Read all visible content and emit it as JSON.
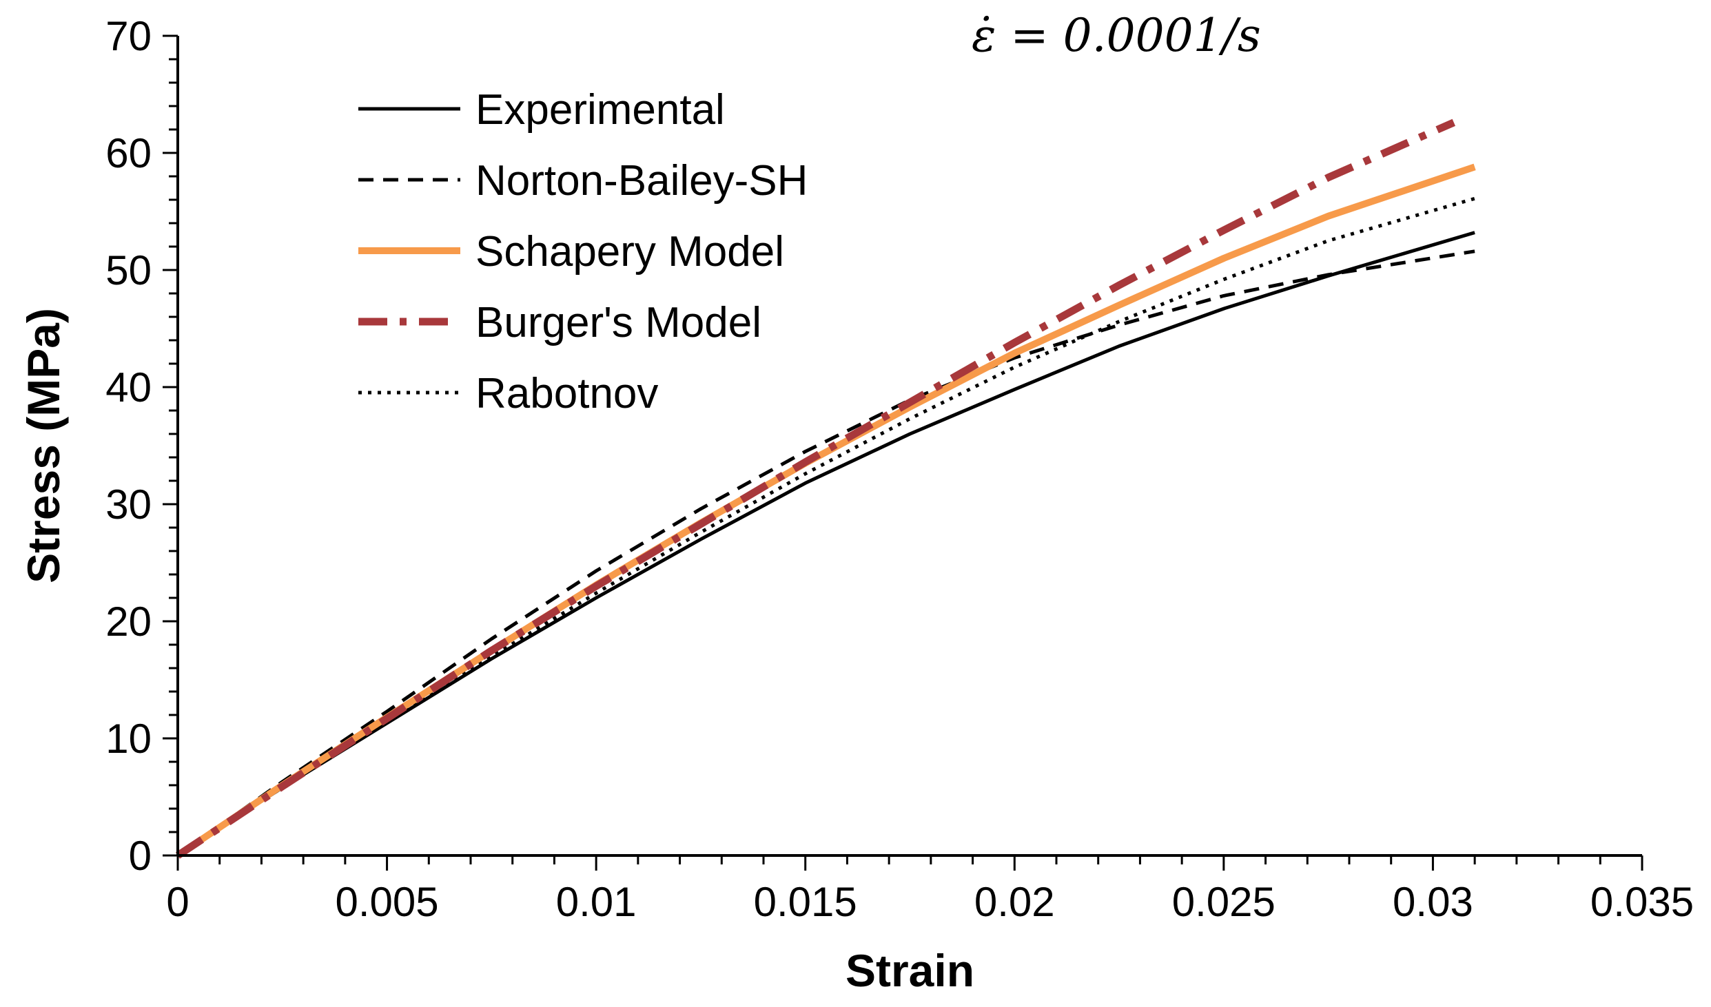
{
  "chart_data": {
    "type": "line",
    "title": "",
    "xlabel": "Strain",
    "ylabel": "Stress (MPa)",
    "annotation": "ε̇ = 0.0001/s",
    "xlim": [
      0,
      0.035
    ],
    "ylim": [
      0,
      70
    ],
    "xticks": [
      0,
      0.005,
      0.01,
      0.015,
      0.02,
      0.025,
      0.03,
      0.035
    ],
    "xtick_labels": [
      "0",
      "0.005",
      "0.01",
      "0.015",
      "0.02",
      "0.025",
      "0.03",
      "0.035"
    ],
    "yticks": [
      0,
      10,
      20,
      30,
      40,
      50,
      60,
      70
    ],
    "ytick_labels": [
      "0",
      "10",
      "20",
      "30",
      "40",
      "50",
      "60",
      "70"
    ],
    "grid": false,
    "legend_position": "top-left",
    "series": [
      {
        "name": "Experimental",
        "color": "#000000",
        "style": "solid",
        "x": [
          0,
          0.0025,
          0.005,
          0.0075,
          0.01,
          0.0125,
          0.015,
          0.0175,
          0.02,
          0.0225,
          0.025,
          0.0275,
          0.031
        ],
        "y": [
          0,
          5.8,
          11.3,
          16.8,
          22.0,
          27.0,
          31.8,
          36.0,
          39.8,
          43.5,
          46.7,
          49.5,
          53.2
        ]
      },
      {
        "name": "Norton-Bailey-SH",
        "color": "#000000",
        "style": "dashed",
        "x": [
          0,
          0.0025,
          0.005,
          0.0075,
          0.01,
          0.0125,
          0.015,
          0.0175,
          0.02,
          0.0225,
          0.025,
          0.0275,
          0.031
        ],
        "y": [
          0,
          6.3,
          12.3,
          18.5,
          24.3,
          29.6,
          34.5,
          38.9,
          42.5,
          45.3,
          47.8,
          49.6,
          51.6
        ]
      },
      {
        "name": "Schapery Model",
        "color": "#F79A4A",
        "style": "solid",
        "x": [
          0,
          0.0025,
          0.005,
          0.0075,
          0.01,
          0.0125,
          0.015,
          0.0175,
          0.02,
          0.0225,
          0.025,
          0.0275,
          0.031
        ],
        "y": [
          0,
          6.0,
          11.8,
          17.5,
          23.1,
          28.4,
          33.5,
          38.3,
          42.9,
          47.0,
          51.0,
          54.6,
          58.8
        ]
      },
      {
        "name": "Burger's Model",
        "color": "#A8383B",
        "style": "dashdot",
        "x": [
          0,
          0.0025,
          0.005,
          0.0075,
          0.01,
          0.0125,
          0.015,
          0.0175,
          0.02,
          0.0225,
          0.025,
          0.0275,
          0.0305
        ],
        "y": [
          0,
          5.9,
          11.7,
          17.5,
          23.0,
          28.3,
          33.6,
          38.7,
          43.8,
          48.7,
          53.4,
          57.9,
          62.6
        ]
      },
      {
        "name": "Rabotnov",
        "color": "#000000",
        "style": "dotted",
        "x": [
          0,
          0.0025,
          0.005,
          0.0075,
          0.01,
          0.0125,
          0.015,
          0.0175,
          0.02,
          0.0225,
          0.025,
          0.0275,
          0.031
        ],
        "y": [
          0,
          5.8,
          11.5,
          17.0,
          22.4,
          27.6,
          32.6,
          37.3,
          41.7,
          45.6,
          49.2,
          52.5,
          56.1
        ]
      }
    ]
  }
}
